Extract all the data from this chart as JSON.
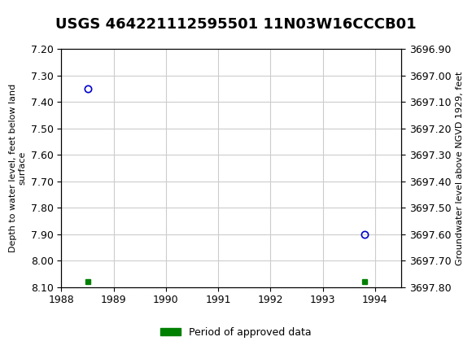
{
  "title": "USGS 464221112595501 11N03W16CCCB01",
  "xlabel": "",
  "ylabel_left": "Depth to water level, feet below land\nsurface",
  "ylabel_right": "Groundwater level above NGVD 1929, feet",
  "xlim": [
    1988,
    1994.5
  ],
  "ylim_left": [
    7.2,
    8.1
  ],
  "ylim_right": [
    3696.9,
    3697.8
  ],
  "xticks": [
    1988,
    1989,
    1990,
    1991,
    1992,
    1993,
    1994
  ],
  "yticks_left": [
    7.2,
    7.3,
    7.4,
    7.5,
    7.6,
    7.7,
    7.8,
    7.9,
    8.0,
    8.1
  ],
  "yticks_right": [
    3696.9,
    3697.0,
    3697.1,
    3697.2,
    3697.3,
    3697.4,
    3697.5,
    3697.6,
    3697.7,
    3697.8
  ],
  "blue_points_x": [
    1988.5,
    1993.8
  ],
  "blue_points_y": [
    7.35,
    7.9
  ],
  "green_points_x": [
    1988.5,
    1993.8
  ],
  "green_points_y": [
    8.08,
    8.08
  ],
  "blue_marker_color": "#0000cc",
  "green_marker_color": "#008000",
  "background_color": "#ffffff",
  "plot_bg_color": "#ffffff",
  "grid_color": "#cccccc",
  "header_color": "#1a6b3c",
  "title_fontsize": 13,
  "tick_fontsize": 9,
  "legend_label": "Period of approved data"
}
